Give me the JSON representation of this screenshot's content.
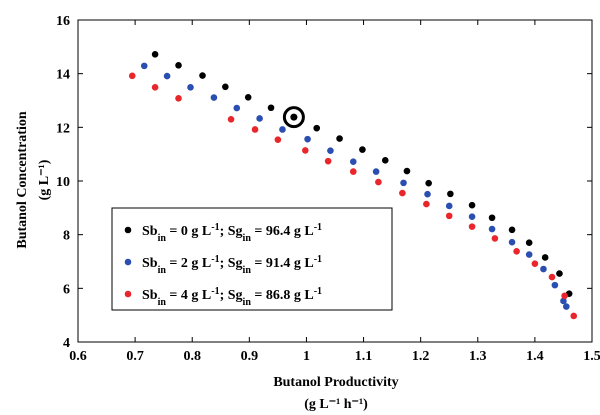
{
  "chart_data": {
    "type": "scatter",
    "title": "",
    "xlabel": "Butanol Productivity",
    "xunit": "(g L⁻¹ h⁻¹)",
    "ylabel": "Butanol Concentration",
    "yunit": "(g L⁻¹)",
    "xlim": [
      0.6,
      1.5
    ],
    "ylim": [
      4,
      16
    ],
    "xticks": [
      "0.6",
      "0.7",
      "0.8",
      "0.9",
      "1",
      "1.1",
      "1.2",
      "1.3",
      "1.4",
      "1.5"
    ],
    "yticks": [
      "4",
      "6",
      "8",
      "10",
      "12",
      "14",
      "16"
    ],
    "grid": false,
    "legend_position": "bottom-left",
    "legend_labels": [
      "Sb_in = 0 g L^-1; Sg_in = 96.4 g L^-1",
      "Sb_in = 2 g L^-1; Sg_in = 91.4 g L^-1",
      "Sb_in = 4 g L^-1; Sg_in = 86.8 g L^-1"
    ],
    "highlight": {
      "x": 0.978,
      "y": 12.38,
      "color": "#000000"
    },
    "series": [
      {
        "name": "Sb_in = 0 g L^-1; Sg_in = 96.4 g L^-1",
        "color": "#000000",
        "x": [
          0.735,
          0.776,
          0.818,
          0.858,
          0.898,
          0.938,
          0.978,
          1.018,
          1.058,
          1.098,
          1.138,
          1.176,
          1.214,
          1.252,
          1.29,
          1.325,
          1.36,
          1.39,
          1.418,
          1.443,
          1.46
        ],
        "y": [
          14.72,
          14.31,
          13.93,
          13.51,
          13.12,
          12.73,
          12.38,
          11.97,
          11.58,
          11.17,
          10.77,
          10.37,
          9.92,
          9.52,
          9.1,
          8.63,
          8.18,
          7.7,
          7.15,
          6.55,
          5.8
        ]
      },
      {
        "name": "Sb_in = 2 g L^-1; Sg_in = 91.4 g L^-1",
        "color": "#2b4fb0",
        "x": [
          0.716,
          0.756,
          0.797,
          0.838,
          0.878,
          0.918,
          0.958,
          1.002,
          1.042,
          1.082,
          1.122,
          1.17,
          1.212,
          1.25,
          1.29,
          1.325,
          1.36,
          1.39,
          1.415,
          1.435,
          1.45,
          1.455
        ],
        "y": [
          14.29,
          13.91,
          13.49,
          13.11,
          12.72,
          12.33,
          11.92,
          11.56,
          11.13,
          10.72,
          10.35,
          9.93,
          9.51,
          9.07,
          8.67,
          8.21,
          7.72,
          7.26,
          6.72,
          6.12,
          5.53,
          5.32
        ]
      },
      {
        "name": "Sb_in = 4 g L^-1; Sg_in = 86.8 g L^-1",
        "color": "#e8262b",
        "x": [
          0.695,
          0.735,
          0.776,
          0.868,
          0.91,
          0.95,
          0.998,
          1.038,
          1.082,
          1.126,
          1.168,
          1.21,
          1.25,
          1.29,
          1.33,
          1.368,
          1.4,
          1.43,
          1.452,
          1.468
        ],
        "y": [
          13.92,
          13.49,
          13.08,
          12.3,
          11.92,
          11.54,
          11.14,
          10.74,
          10.35,
          9.96,
          9.55,
          9.14,
          8.7,
          8.3,
          7.86,
          7.38,
          6.92,
          6.42,
          5.72,
          4.97
        ]
      }
    ]
  }
}
